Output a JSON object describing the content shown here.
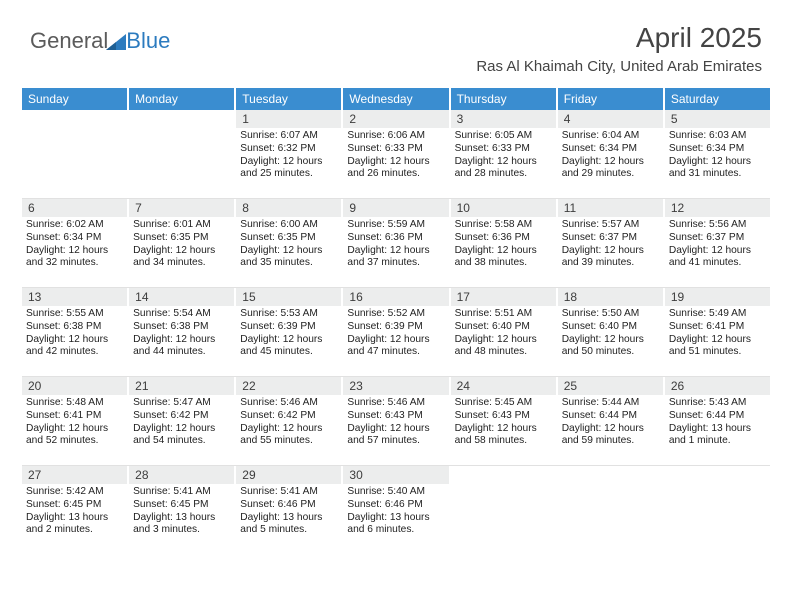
{
  "logo": {
    "text_general": "General",
    "text_blue": "Blue"
  },
  "header": {
    "month_title": "April 2025",
    "location": "Ras Al Khaimah City, United Arab Emirates"
  },
  "colors": {
    "header_bg": "#3a8dd0",
    "header_text": "#ffffff",
    "daynum_bg": "#eceded",
    "body_bg": "#ffffff",
    "logo_gray": "#5b5b5b",
    "logo_blue": "#2c7bbf"
  },
  "day_names": [
    "Sunday",
    "Monday",
    "Tuesday",
    "Wednesday",
    "Thursday",
    "Friday",
    "Saturday"
  ],
  "weeks": [
    [
      {
        "empty": true
      },
      {
        "empty": true
      },
      {
        "n": "1",
        "sunrise": "6:07 AM",
        "sunset": "6:32 PM",
        "daylight": "12 hours and 25 minutes."
      },
      {
        "n": "2",
        "sunrise": "6:06 AM",
        "sunset": "6:33 PM",
        "daylight": "12 hours and 26 minutes."
      },
      {
        "n": "3",
        "sunrise": "6:05 AM",
        "sunset": "6:33 PM",
        "daylight": "12 hours and 28 minutes."
      },
      {
        "n": "4",
        "sunrise": "6:04 AM",
        "sunset": "6:34 PM",
        "daylight": "12 hours and 29 minutes."
      },
      {
        "n": "5",
        "sunrise": "6:03 AM",
        "sunset": "6:34 PM",
        "daylight": "12 hours and 31 minutes."
      }
    ],
    [
      {
        "n": "6",
        "sunrise": "6:02 AM",
        "sunset": "6:34 PM",
        "daylight": "12 hours and 32 minutes."
      },
      {
        "n": "7",
        "sunrise": "6:01 AM",
        "sunset": "6:35 PM",
        "daylight": "12 hours and 34 minutes."
      },
      {
        "n": "8",
        "sunrise": "6:00 AM",
        "sunset": "6:35 PM",
        "daylight": "12 hours and 35 minutes."
      },
      {
        "n": "9",
        "sunrise": "5:59 AM",
        "sunset": "6:36 PM",
        "daylight": "12 hours and 37 minutes."
      },
      {
        "n": "10",
        "sunrise": "5:58 AM",
        "sunset": "6:36 PM",
        "daylight": "12 hours and 38 minutes."
      },
      {
        "n": "11",
        "sunrise": "5:57 AM",
        "sunset": "6:37 PM",
        "daylight": "12 hours and 39 minutes."
      },
      {
        "n": "12",
        "sunrise": "5:56 AM",
        "sunset": "6:37 PM",
        "daylight": "12 hours and 41 minutes."
      }
    ],
    [
      {
        "n": "13",
        "sunrise": "5:55 AM",
        "sunset": "6:38 PM",
        "daylight": "12 hours and 42 minutes."
      },
      {
        "n": "14",
        "sunrise": "5:54 AM",
        "sunset": "6:38 PM",
        "daylight": "12 hours and 44 minutes."
      },
      {
        "n": "15",
        "sunrise": "5:53 AM",
        "sunset": "6:39 PM",
        "daylight": "12 hours and 45 minutes."
      },
      {
        "n": "16",
        "sunrise": "5:52 AM",
        "sunset": "6:39 PM",
        "daylight": "12 hours and 47 minutes."
      },
      {
        "n": "17",
        "sunrise": "5:51 AM",
        "sunset": "6:40 PM",
        "daylight": "12 hours and 48 minutes."
      },
      {
        "n": "18",
        "sunrise": "5:50 AM",
        "sunset": "6:40 PM",
        "daylight": "12 hours and 50 minutes."
      },
      {
        "n": "19",
        "sunrise": "5:49 AM",
        "sunset": "6:41 PM",
        "daylight": "12 hours and 51 minutes."
      }
    ],
    [
      {
        "n": "20",
        "sunrise": "5:48 AM",
        "sunset": "6:41 PM",
        "daylight": "12 hours and 52 minutes."
      },
      {
        "n": "21",
        "sunrise": "5:47 AM",
        "sunset": "6:42 PM",
        "daylight": "12 hours and 54 minutes."
      },
      {
        "n": "22",
        "sunrise": "5:46 AM",
        "sunset": "6:42 PM",
        "daylight": "12 hours and 55 minutes."
      },
      {
        "n": "23",
        "sunrise": "5:46 AM",
        "sunset": "6:43 PM",
        "daylight": "12 hours and 57 minutes."
      },
      {
        "n": "24",
        "sunrise": "5:45 AM",
        "sunset": "6:43 PM",
        "daylight": "12 hours and 58 minutes."
      },
      {
        "n": "25",
        "sunrise": "5:44 AM",
        "sunset": "6:44 PM",
        "daylight": "12 hours and 59 minutes."
      },
      {
        "n": "26",
        "sunrise": "5:43 AM",
        "sunset": "6:44 PM",
        "daylight": "13 hours and 1 minute."
      }
    ],
    [
      {
        "n": "27",
        "sunrise": "5:42 AM",
        "sunset": "6:45 PM",
        "daylight": "13 hours and 2 minutes."
      },
      {
        "n": "28",
        "sunrise": "5:41 AM",
        "sunset": "6:45 PM",
        "daylight": "13 hours and 3 minutes."
      },
      {
        "n": "29",
        "sunrise": "5:41 AM",
        "sunset": "6:46 PM",
        "daylight": "13 hours and 5 minutes."
      },
      {
        "n": "30",
        "sunrise": "5:40 AM",
        "sunset": "6:46 PM",
        "daylight": "13 hours and 6 minutes."
      },
      {
        "empty": true
      },
      {
        "empty": true
      },
      {
        "empty": true
      }
    ]
  ],
  "labels": {
    "sunrise_prefix": "Sunrise: ",
    "sunset_prefix": "Sunset: ",
    "daylight_prefix": "Daylight: "
  }
}
